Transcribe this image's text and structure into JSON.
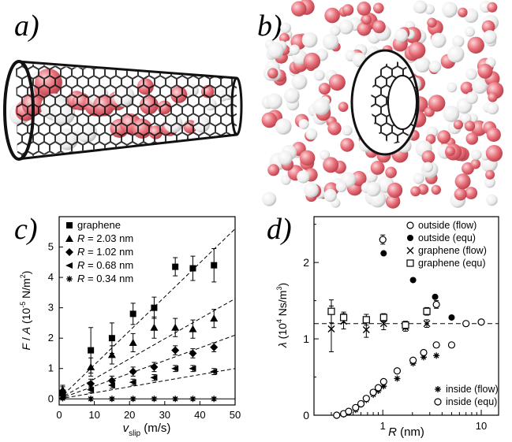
{
  "panels": {
    "a": {
      "letter": "a)"
    },
    "b": {
      "letter": "b)"
    },
    "c": {
      "letter": "c)"
    },
    "d": {
      "letter": "d)"
    }
  },
  "colors": {
    "atom_red": "#e8707a",
    "atom_white": "#f4f4f4",
    "tube": "#111111"
  },
  "chart_data": [
    {
      "panel": "c",
      "type": "scatter",
      "xlabel": "v_slip (m/s)",
      "ylabel": "F / A (10^-5 N/m^2)",
      "xlim": [
        0,
        50
      ],
      "ylim": [
        -0.2,
        6
      ],
      "xticks": [
        0,
        10,
        20,
        30,
        40,
        50
      ],
      "yticks": [
        0,
        1,
        2,
        3,
        4,
        5
      ],
      "legend_position": "top-left",
      "series": [
        {
          "name": "graphene",
          "marker": "square",
          "x": [
            1,
            9,
            15,
            21,
            27,
            33,
            38,
            44
          ],
          "y": [
            0.2,
            1.6,
            2.0,
            2.8,
            3.0,
            4.35,
            4.3,
            4.4
          ],
          "err": [
            0.2,
            0.75,
            0.5,
            0.35,
            0.35,
            0.3,
            0.4,
            0.55
          ],
          "fit_slope": 0.112
        },
        {
          "name": "R = 2.03 nm",
          "marker": "triangle",
          "x": [
            1,
            9,
            15,
            21,
            27,
            33,
            38,
            44
          ],
          "y": [
            0.3,
            1.05,
            1.45,
            1.85,
            2.35,
            2.35,
            2.3,
            2.65
          ],
          "err": [
            0.15,
            0.3,
            0.3,
            0.3,
            0.35,
            0.3,
            0.3,
            0.3
          ],
          "fit_slope": 0.066
        },
        {
          "name": "R = 1.02 nm",
          "marker": "diamond",
          "x": [
            1,
            9,
            15,
            21,
            27,
            33,
            38,
            44
          ],
          "y": [
            0.2,
            0.5,
            0.6,
            0.9,
            1.05,
            1.6,
            1.5,
            1.7
          ],
          "err": [
            0.1,
            0.15,
            0.15,
            0.15,
            0.15,
            0.15,
            0.15,
            0.15
          ],
          "fit_slope": 0.042
        },
        {
          "name": "R = 0.68 nm",
          "marker": "left-triangle",
          "x": [
            1,
            9,
            15,
            21,
            27,
            33,
            38,
            44
          ],
          "y": [
            0.1,
            0.3,
            0.45,
            0.55,
            0.7,
            1.0,
            1.0,
            0.9
          ],
          "err": [
            0.05,
            0.1,
            0.1,
            0.1,
            0.1,
            0.1,
            0.1,
            0.1
          ],
          "fit_slope": 0.02
        },
        {
          "name": "R = 0.34 nm",
          "marker": "asterisk",
          "x": [
            1,
            9,
            15,
            21,
            27,
            33,
            38,
            44
          ],
          "y": [
            0.02,
            0.0,
            0.0,
            0.0,
            0.0,
            0.0,
            0.0,
            0.0
          ],
          "err": [
            0.05,
            0.05,
            0.05,
            0.05,
            0.05,
            0.05,
            0.05,
            0.05
          ],
          "fit_slope": 0.0
        }
      ]
    },
    {
      "panel": "d",
      "type": "scatter",
      "xscale": "log",
      "xlabel": "R (nm)",
      "ylabel": "λ (10^4 Ns/m^3)",
      "xlim": [
        0.2,
        15
      ],
      "ylim": [
        0,
        2.6
      ],
      "xticks": [
        1,
        10
      ],
      "yticks": [
        0,
        1,
        2
      ],
      "reference_line": 1.2,
      "legend_position": "top-right",
      "legend2_position": "bottom-right",
      "series": [
        {
          "name": "outside (flow)",
          "marker": "circle-open",
          "x": [
            1.0,
            3.5,
            7.0,
            10.0
          ],
          "y": [
            2.3,
            1.45,
            1.2,
            1.22
          ],
          "err": [
            0.06,
            0.05,
            0,
            0
          ]
        },
        {
          "name": "outside (equ)",
          "marker": "circle-filled",
          "x": [
            1.02,
            2.03,
            3.4,
            5.0
          ],
          "y": [
            2.12,
            1.77,
            1.55,
            1.28
          ]
        },
        {
          "name": "graphene (flow)",
          "marker": "x",
          "x": [
            0.3,
            0.4,
            0.68,
            1.02,
            1.7,
            2.8
          ],
          "y": [
            1.13,
            1.23,
            1.12,
            1.2,
            1.15,
            1.2
          ],
          "err": [
            0.3,
            0.1,
            0.1,
            0.08,
            0.05,
            0.05
          ]
        },
        {
          "name": "graphene (equ)",
          "marker": "square-open",
          "x": [
            0.3,
            0.4,
            0.68,
            1.02,
            1.7,
            2.8
          ],
          "y": [
            1.36,
            1.28,
            1.25,
            1.28,
            1.18,
            1.36
          ],
          "err": [
            0.15,
            0.07,
            0.07,
            0.05,
            0.05,
            0.05
          ]
        },
        {
          "name": "inside (flow)",
          "marker": "asterisk",
          "x": [
            0.34,
            0.4,
            0.45,
            0.53,
            0.6,
            0.68,
            0.8,
            0.9,
            1.02,
            1.4,
            2.03,
            2.6,
            3.5
          ],
          "y": [
            0.0,
            0.01,
            0.04,
            0.07,
            0.14,
            0.2,
            0.27,
            0.32,
            0.38,
            0.48,
            0.68,
            0.76,
            0.78
          ]
        },
        {
          "name": "inside (equ)",
          "marker": "circle-open",
          "x": [
            0.34,
            0.4,
            0.45,
            0.53,
            0.6,
            0.68,
            0.8,
            0.9,
            1.02,
            1.4,
            2.03,
            2.6,
            3.5,
            5.0
          ],
          "y": [
            0.0,
            0.02,
            0.05,
            0.1,
            0.15,
            0.22,
            0.3,
            0.36,
            0.44,
            0.58,
            0.72,
            0.82,
            0.92,
            0.92
          ]
        }
      ]
    }
  ],
  "axes_text": {
    "c": {
      "xlabel_main": "v",
      "xlabel_sub": "slip",
      "xlabel_unit": " (m/s)",
      "ylabel_F": "F",
      "ylabel_mid": " / ",
      "ylabel_A": "A",
      "ylabel_open": " (10",
      "ylabel_exp": "-5",
      "ylabel_unit": " N/m",
      "ylabel_exp2": "2",
      "ylabel_close": ")"
    },
    "d": {
      "xlabel_R": "R",
      "xlabel_unit": " (nm)",
      "ylabel_lambda": "λ",
      "ylabel_open": " (10",
      "ylabel_exp": "4",
      "ylabel_unit": " Ns/m",
      "ylabel_exp2": "3",
      "ylabel_close": ")"
    }
  }
}
